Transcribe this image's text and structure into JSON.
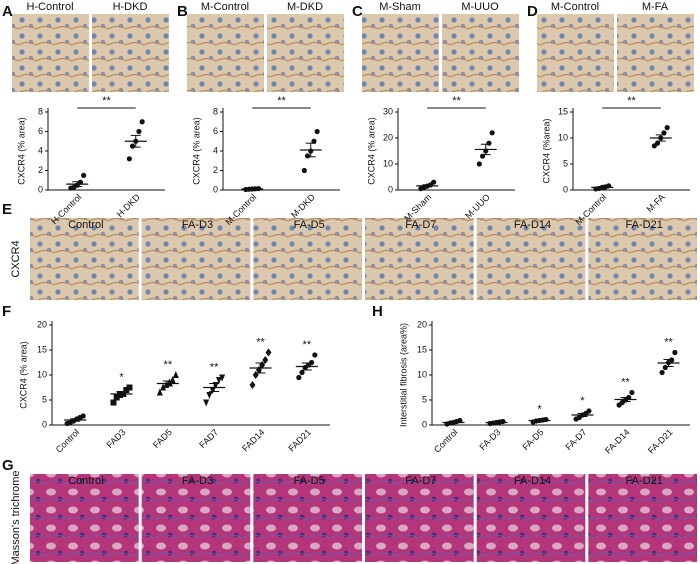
{
  "chart_data": [
    {
      "type": "dotplot",
      "panel": "A",
      "ylabel": "CXCR4 (% area)",
      "categories": [
        "H-Control",
        "H-DKD"
      ],
      "points": [
        [
          0.2,
          0.3,
          0.5,
          0.8,
          1.5
        ],
        [
          3.2,
          4.5,
          5,
          6,
          7
        ]
      ],
      "means": [
        0.6,
        5
      ],
      "sem": [
        0.25,
        0.6
      ],
      "ylim": [
        0,
        8
      ],
      "yticks": [
        0,
        2,
        4,
        6,
        8
      ],
      "significance": "**"
    },
    {
      "type": "dotplot",
      "panel": "B",
      "ylabel": "CXCR4 (% area)",
      "categories": [
        "M-Control",
        "M-DKD"
      ],
      "points": [
        [
          0.05,
          0.08,
          0.1,
          0.12,
          0.15
        ],
        [
          2,
          3.5,
          4,
          5,
          6
        ]
      ],
      "means": [
        0.1,
        4.1
      ],
      "sem": [
        0.02,
        0.7
      ],
      "ylim": [
        0,
        8
      ],
      "yticks": [
        0,
        2,
        4,
        6,
        8
      ],
      "significance": "**"
    },
    {
      "type": "dotplot",
      "panel": "C",
      "ylabel": "CXCR4 (% area)",
      "categories": [
        "M-Sham",
        "M-UUO"
      ],
      "points": [
        [
          0.5,
          1,
          1.5,
          2,
          3
        ],
        [
          10,
          13,
          15,
          18,
          22
        ]
      ],
      "means": [
        1.6,
        15.6
      ],
      "sem": [
        0.4,
        2
      ],
      "ylim": [
        0,
        30
      ],
      "yticks": [
        0,
        10,
        20,
        30
      ],
      "significance": "**"
    },
    {
      "type": "dotplot",
      "panel": "D",
      "ylabel": "CXCR4 (%area)",
      "categories": [
        "M-Control",
        "M-FA"
      ],
      "points": [
        [
          0.2,
          0.3,
          0.5,
          0.6,
          0.8
        ],
        [
          8.5,
          9,
          10,
          11,
          12
        ]
      ],
      "means": [
        0.5,
        10
      ],
      "sem": [
        0.1,
        0.6
      ],
      "ylim": [
        0,
        15
      ],
      "yticks": [
        0,
        5,
        10,
        15
      ],
      "significance": "**"
    },
    {
      "type": "dotplot",
      "panel": "F",
      "ylabel": "CXCR4 (% area)",
      "categories": [
        "Control",
        "FAD3",
        "FAD5",
        "FAD7",
        "FAD14",
        "FAD21"
      ],
      "markers": [
        "circle",
        "square",
        "triangle",
        "triangle-down",
        "diamond",
        "circle"
      ],
      "points": [
        [
          0.3,
          0.5,
          0.8,
          1.2,
          1.5,
          1.8
        ],
        [
          4.5,
          5.5,
          6,
          6.2,
          7,
          7.5
        ],
        [
          6.5,
          7.5,
          8,
          8.5,
          9,
          10
        ],
        [
          4.5,
          6,
          7,
          8,
          9,
          9.5
        ],
        [
          8,
          10,
          11,
          12,
          13,
          14.5
        ],
        [
          9.5,
          10.5,
          11.5,
          12,
          12.5,
          14
        ]
      ],
      "means": [
        1,
        6.2,
        8.3,
        7.5,
        11.4,
        11.7
      ],
      "sem": [
        0.25,
        0.5,
        0.5,
        0.8,
        1,
        0.7
      ],
      "ylim": [
        0,
        20
      ],
      "yticks": [
        0,
        5,
        10,
        15,
        20
      ],
      "significance": [
        null,
        "*",
        "**",
        "**",
        "**",
        "**"
      ]
    },
    {
      "type": "dotplot",
      "panel": "H",
      "ylabel": "Interstitial fibrosis (area%)",
      "categories": [
        "Control",
        "FA-D3",
        "FA-D5",
        "FA-D7",
        "FA-D14",
        "FA-D21"
      ],
      "points": [
        [
          0.2,
          0.4,
          0.5,
          0.7,
          0.9
        ],
        [
          0.3,
          0.4,
          0.5,
          0.6,
          0.7
        ],
        [
          0.6,
          0.8,
          0.9,
          1,
          1.1
        ],
        [
          1.2,
          1.5,
          2,
          2.3,
          2.8
        ],
        [
          4,
          4.5,
          5,
          5.5,
          6.5
        ],
        [
          10.5,
          11.5,
          12.5,
          13,
          14.5
        ]
      ],
      "means": [
        0.5,
        0.5,
        0.9,
        2,
        5.1,
        12.4
      ],
      "sem": [
        0.1,
        0.1,
        0.1,
        0.3,
        0.4,
        0.7
      ],
      "ylim": [
        0,
        20
      ],
      "yticks": [
        0,
        5,
        10,
        15,
        20
      ],
      "significance": [
        null,
        null,
        "*",
        "*",
        "**",
        "**"
      ]
    }
  ],
  "micrographs": {
    "top": [
      [
        "H-Control",
        "H-DKD"
      ],
      [
        "M-Control",
        "M-DKD"
      ],
      [
        "M-Sham",
        "M-UUO"
      ],
      [
        "M-Control",
        "M-FA"
      ]
    ],
    "E": {
      "panel": "E",
      "side": "CXCR4",
      "labels": [
        "Control",
        "FA-D3",
        "FA-D5",
        "FA-D7",
        "FA-D14",
        "FA-D21"
      ]
    },
    "G": {
      "panel": "G",
      "side": "Masson's trichrome",
      "labels": [
        "Control",
        "FA-D3",
        "FA-D5",
        "FA-D7",
        "FA-D14",
        "FA-D21"
      ]
    }
  }
}
